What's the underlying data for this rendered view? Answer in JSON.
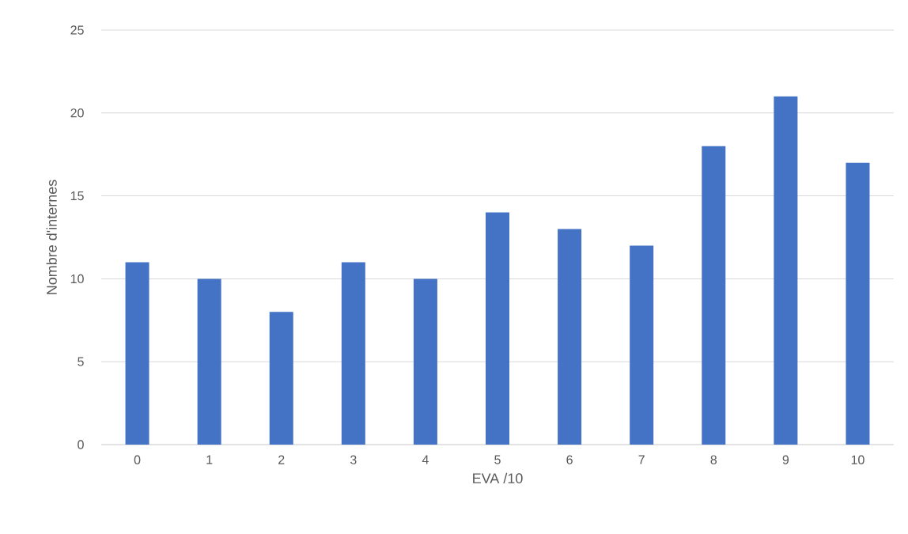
{
  "chart_data": {
    "type": "bar",
    "xlabel": "EVA /10",
    "ylabel": "Nombre d'internes",
    "categories": [
      "0",
      "1",
      "2",
      "3",
      "4",
      "5",
      "6",
      "7",
      "8",
      "9",
      "10"
    ],
    "values": [
      11,
      10,
      8,
      11,
      10,
      14,
      13,
      12,
      18,
      21,
      17
    ],
    "color": "#4472c4",
    "ylim": [
      0,
      25
    ],
    "yticks": [
      0,
      5,
      10,
      15,
      20,
      25
    ],
    "grid": "y"
  }
}
